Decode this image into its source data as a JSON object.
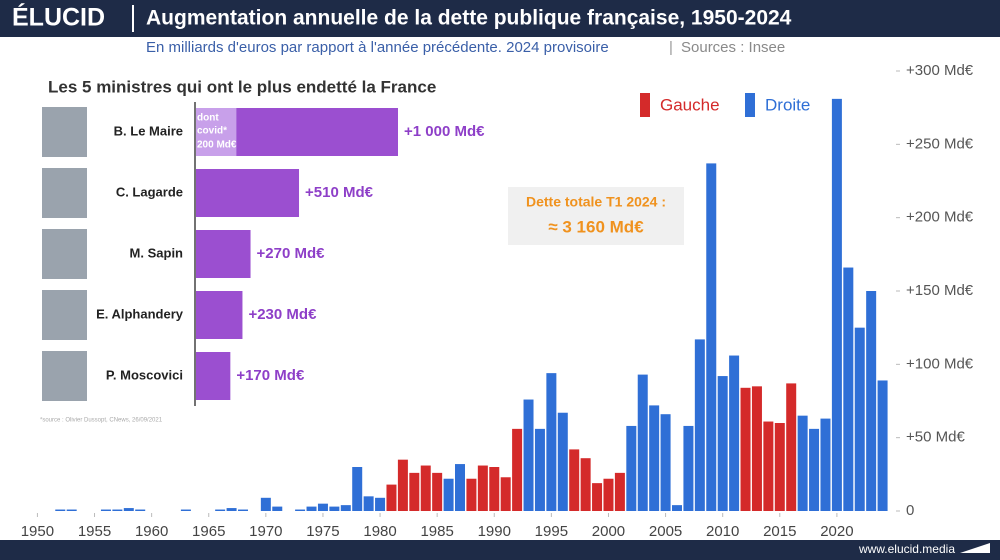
{
  "header": {
    "brand": "ÉLUCID",
    "footer": "www.elucid.media"
  },
  "chart_data": [
    {
      "type": "bar",
      "title": "Augmentation annuelle de la dette publique française, 1950-2024",
      "subtitle": "En milliards d'euros par rapport à l'année précédente. 2024 provisoire",
      "source": "Sources : Insee",
      "annotation": {
        "line1": "Dette totale T1 2024 :",
        "line2": "≈ 3 160 Md€"
      },
      "x": [
        1950,
        1951,
        1952,
        1953,
        1954,
        1955,
        1956,
        1957,
        1958,
        1959,
        1960,
        1961,
        1962,
        1963,
        1964,
        1965,
        1966,
        1967,
        1968,
        1969,
        1970,
        1971,
        1972,
        1973,
        1974,
        1975,
        1976,
        1977,
        1978,
        1979,
        1980,
        1981,
        1982,
        1983,
        1984,
        1985,
        1986,
        1987,
        1988,
        1989,
        1990,
        1991,
        1992,
        1993,
        1994,
        1995,
        1996,
        1997,
        1998,
        1999,
        2000,
        2001,
        2002,
        2003,
        2004,
        2005,
        2006,
        2007,
        2008,
        2009,
        2010,
        2011,
        2012,
        2013,
        2014,
        2015,
        2016,
        2017,
        2018,
        2019,
        2020,
        2021,
        2022,
        2023,
        2024
      ],
      "series": [
        {
          "name": "Gauche",
          "color": "#d42a2a",
          "values": [
            null,
            null,
            null,
            null,
            null,
            null,
            null,
            null,
            null,
            null,
            null,
            null,
            null,
            null,
            null,
            null,
            null,
            null,
            null,
            null,
            null,
            null,
            null,
            null,
            null,
            null,
            null,
            null,
            null,
            null,
            null,
            18,
            35,
            26,
            31,
            26,
            null,
            null,
            22,
            31,
            30,
            23,
            56,
            null,
            null,
            null,
            null,
            42,
            36,
            19,
            22,
            26,
            null,
            null,
            null,
            null,
            null,
            null,
            null,
            null,
            null,
            null,
            84,
            85,
            61,
            60,
            87,
            null,
            null,
            null,
            null,
            null,
            null,
            null,
            null
          ]
        },
        {
          "name": "Droite",
          "color": "#2f6fd6",
          "values": [
            0,
            0,
            1,
            1,
            0,
            0,
            1,
            1,
            2,
            1,
            0,
            0,
            0,
            1,
            0,
            0,
            1,
            2,
            1,
            0,
            9,
            3,
            0,
            1,
            3,
            5,
            3,
            4,
            30,
            10,
            9,
            null,
            null,
            null,
            null,
            null,
            22,
            32,
            null,
            null,
            null,
            null,
            null,
            76,
            56,
            94,
            67,
            null,
            null,
            null,
            null,
            null,
            58,
            93,
            72,
            66,
            4,
            58,
            117,
            237,
            92,
            106,
            null,
            null,
            null,
            null,
            null,
            65,
            56,
            63,
            281,
            166,
            125,
            150,
            89
          ]
        }
      ],
      "xlim": [
        1949,
        2025
      ],
      "xticks": [
        1950,
        1955,
        1960,
        1965,
        1970,
        1975,
        1980,
        1985,
        1990,
        1995,
        2000,
        2005,
        2010,
        2015,
        2020
      ],
      "ylim": [
        0,
        300
      ],
      "yticks": [
        0,
        {
          "value": 50,
          "label": "+50 Md€"
        },
        {
          "value": 100,
          "label": "+100 Md€"
        },
        {
          "value": 150,
          "label": "+150 Md€"
        },
        {
          "value": 200,
          "label": "+200 Md€"
        },
        {
          "value": 250,
          "label": "+250 Md€"
        },
        {
          "value": 300,
          "label": "+300 Md€"
        }
      ],
      "legend": "top-right"
    },
    {
      "type": "bar",
      "orientation": "horizontal",
      "title": "Les 5 ministres qui ont le plus endetté la France",
      "categories": [
        "B. Le Maire",
        "C. Lagarde",
        "M. Sapin",
        "E. Alphandery",
        "P. Moscovici"
      ],
      "values": [
        1000,
        510,
        270,
        230,
        170
      ],
      "value_labels": [
        "+1 000 Md€",
        "+510 Md€",
        "+270 Md€",
        "+230 Md€",
        "+170 Md€"
      ],
      "color": "#9b4fd0",
      "covid": {
        "line1": "dont",
        "line2": "covid*",
        "value": 200,
        "value_label": "200 Md€",
        "color": "#c8a0ea"
      },
      "note": "*source : Olivier Dussopt, CNews, 26/09/2021"
    }
  ]
}
